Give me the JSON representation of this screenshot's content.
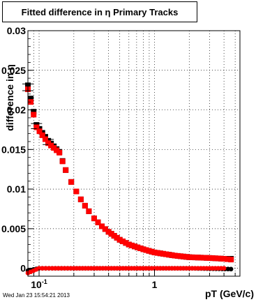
{
  "chart_data": {
    "type": "scatter",
    "title": "Fitted difference in η  Primary Tracks",
    "xlabel": "pT (GeV/c)",
    "ylabel": "difference in η",
    "xscale": "log",
    "xlim": [
      0.08,
      5.5
    ],
    "ylim": [
      -0.001,
      0.03
    ],
    "grid": true,
    "yticks": [
      {
        "value": 0,
        "label": "0"
      },
      {
        "value": 0.005,
        "label": "0.005"
      },
      {
        "value": 0.01,
        "label": "0.01"
      },
      {
        "value": 0.015,
        "label": "0.015"
      },
      {
        "value": 0.02,
        "label": "0.02"
      },
      {
        "value": 0.025,
        "label": "0.025"
      },
      {
        "value": 0.03,
        "label": "0.03"
      }
    ],
    "xticks": [
      {
        "value": 0.1,
        "label": "10",
        "sup": "-1"
      },
      {
        "value": 1,
        "label": "1",
        "sup": ""
      }
    ],
    "series": [
      {
        "color": "#000000",
        "marker": "square",
        "x": [
          0.08,
          0.095,
          0.12,
          0.15,
          0.17,
          0.19,
          0.21,
          0.23,
          0.25,
          0.27,
          0.3,
          0.35,
          0.4,
          0.5,
          0.6,
          0.8,
          1.0,
          1.5,
          2.0,
          3.0,
          4.0,
          4.6
        ],
        "y": [
          0.0231,
          0.0181,
          0.0161,
          0.0147,
          0.0124,
          0.0109,
          0.0097,
          0.0087,
          0.0079,
          0.0072,
          0.0063,
          0.0053,
          0.0046,
          0.0036,
          0.003,
          0.0024,
          0.002,
          0.0016,
          0.0014,
          0.0013,
          0.0012,
          0.0012
        ]
      },
      {
        "color": "#ff0000",
        "marker": "square",
        "x": [
          0.08,
          0.095,
          0.12,
          0.15,
          0.17,
          0.19,
          0.21,
          0.23,
          0.25,
          0.27,
          0.3,
          0.35,
          0.4,
          0.5,
          0.6,
          0.8,
          1.0,
          1.5,
          2.0,
          3.0,
          4.0,
          4.6
        ],
        "y": [
          0.0226,
          0.0178,
          0.0158,
          0.0146,
          0.0124,
          0.0109,
          0.0097,
          0.0087,
          0.0079,
          0.0072,
          0.0063,
          0.0053,
          0.0046,
          0.0036,
          0.003,
          0.0024,
          0.002,
          0.0016,
          0.0014,
          0.0013,
          0.0012,
          0.0011
        ]
      },
      {
        "color": "#000000",
        "marker": "circle",
        "x": [
          0.08,
          0.1,
          0.13,
          0.2,
          0.4,
          1.0,
          2.0,
          4.6
        ],
        "y": [
          -0.0003,
          0.0,
          0.0,
          0.0,
          0.0,
          0.0,
          0.0,
          -0.0001
        ]
      },
      {
        "color": "#ff0000",
        "marker": "circle",
        "x": [
          0.08,
          0.1,
          0.13,
          0.2,
          0.4,
          1.0,
          2.0,
          4.0
        ],
        "y": [
          -0.0006,
          0.0,
          0.0,
          0.0,
          0.0,
          0.0,
          0.0,
          0.0
        ]
      }
    ]
  },
  "footer": {
    "timestamp": "Wed Jan 23 15:54:21 2013"
  }
}
